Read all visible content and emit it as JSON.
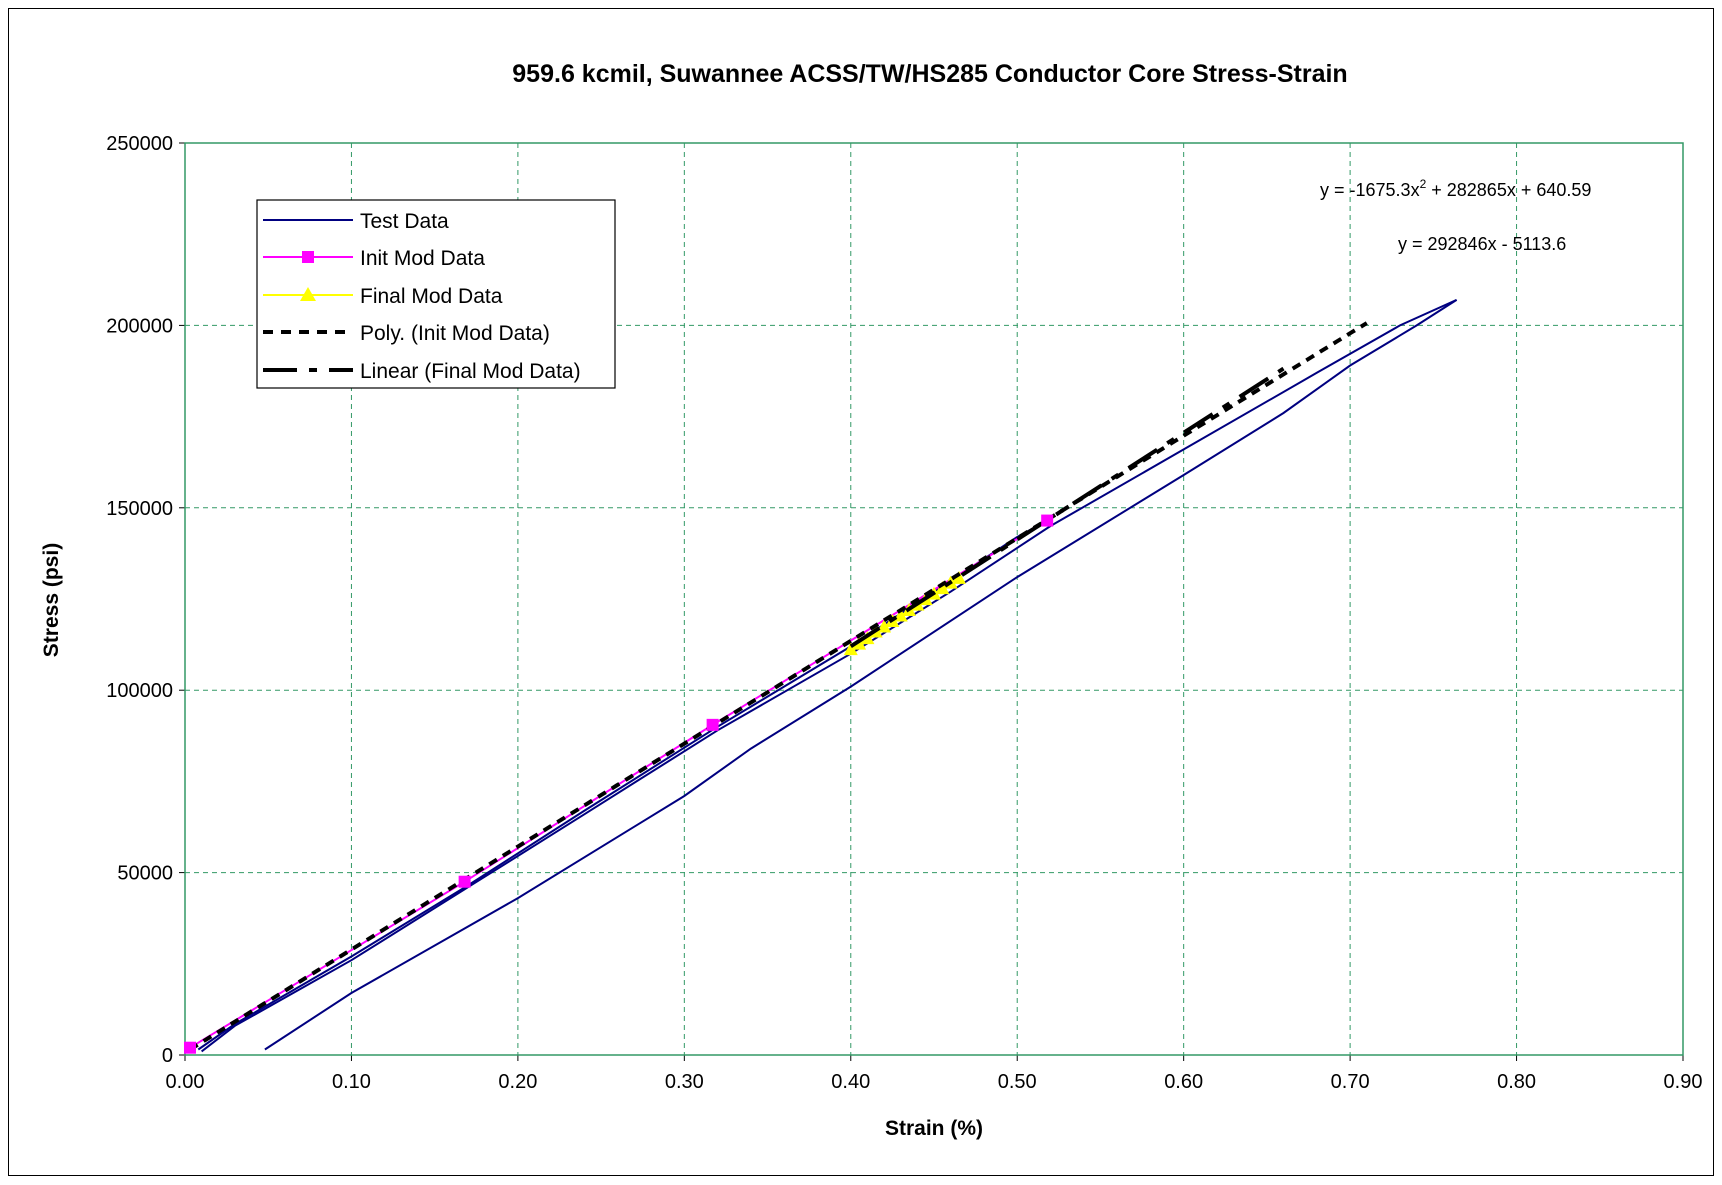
{
  "chart_data": {
    "type": "line",
    "title": "959.6 kcmil, Suwannee ACSS/TW/HS285 Conductor Core Stress-Strain",
    "xlabel": "Strain (%)",
    "ylabel": "Stress (psi)",
    "xlim": [
      0,
      0.9
    ],
    "ylim": [
      0,
      250000
    ],
    "xticks": [
      "0.00",
      "0.10",
      "0.20",
      "0.30",
      "0.40",
      "0.50",
      "0.60",
      "0.70",
      "0.80",
      "0.90"
    ],
    "yticks": [
      "0",
      "50000",
      "100000",
      "150000",
      "200000",
      "250000"
    ],
    "grid": true,
    "legend_position": "top-left",
    "series": [
      {
        "name": "Test Data",
        "color": "#000080",
        "style": "solid",
        "segments": [
          [
            [
              0.01,
              1000
            ],
            [
              0.03,
              8000
            ],
            [
              0.1,
              26000
            ],
            [
              0.17,
              46000
            ],
            [
              0.24,
              66000
            ],
            [
              0.32,
              89000
            ],
            [
              0.4,
              110000
            ],
            [
              0.46,
              127000
            ],
            [
              0.52,
              145000
            ],
            [
              0.6,
              166000
            ],
            [
              0.68,
              187000
            ],
            [
              0.73,
              200000
            ],
            [
              0.764,
              207000
            ]
          ],
          [
            [
              0.764,
              207000
            ],
            [
              0.74,
              200000
            ],
            [
              0.7,
              189000
            ],
            [
              0.66,
              176000
            ],
            [
              0.6,
              159000
            ],
            [
              0.5,
              131000
            ],
            [
              0.4,
              101000
            ],
            [
              0.34,
              84000
            ],
            [
              0.3,
              71000
            ],
            [
              0.2,
              43000
            ],
            [
              0.1,
              17000
            ],
            [
              0.048,
              1500
            ]
          ],
          [
            [
              0.008,
              1500
            ],
            [
              0.03,
              8500
            ],
            [
              0.1,
              27000
            ],
            [
              0.17,
              46500
            ],
            [
              0.24,
              67000
            ],
            [
              0.32,
              90000
            ],
            [
              0.4,
              112000
            ],
            [
              0.5,
              142000
            ],
            [
              0.52,
              147000
            ]
          ]
        ]
      },
      {
        "name": "Init Mod Data",
        "color": "#ff00ff",
        "marker": "square",
        "x": [
          0.003,
          0.168,
          0.317,
          0.518
        ],
        "y": [
          2000,
          47500,
          90500,
          146500
        ]
      },
      {
        "name": "Final Mod Data",
        "color": "#ffff00",
        "marker": "triangle",
        "x": [
          0.4,
          0.405,
          0.41,
          0.415,
          0.42,
          0.425,
          0.43,
          0.435,
          0.44,
          0.445,
          0.45,
          0.455,
          0.46,
          0.465
        ],
        "y": [
          111000,
          112500,
          114000,
          115800,
          117200,
          118700,
          120200,
          121700,
          123200,
          124700,
          126200,
          127700,
          129200,
          130500
        ]
      },
      {
        "name": "Poly. (Init Mod Data)",
        "color": "#000000",
        "style": "dotted",
        "fit": "poly2",
        "coefficients": [
          -1675.3,
          282865,
          640.59
        ],
        "x_range": [
          0.003,
          0.71
        ]
      },
      {
        "name": "Linear (Final Mod Data)",
        "color": "#000000",
        "style": "dashed",
        "fit": "linear",
        "coefficients": [
          292846,
          -5113.6
        ],
        "x_range": [
          0.4,
          0.66
        ]
      }
    ],
    "annotations": {
      "poly_eq_main": "y = -1675.3x",
      "poly_eq_sup": "2",
      "poly_eq_rest": " + 282865x + 640.59",
      "linear_eq": "y = 292846x - 5113.6"
    }
  }
}
